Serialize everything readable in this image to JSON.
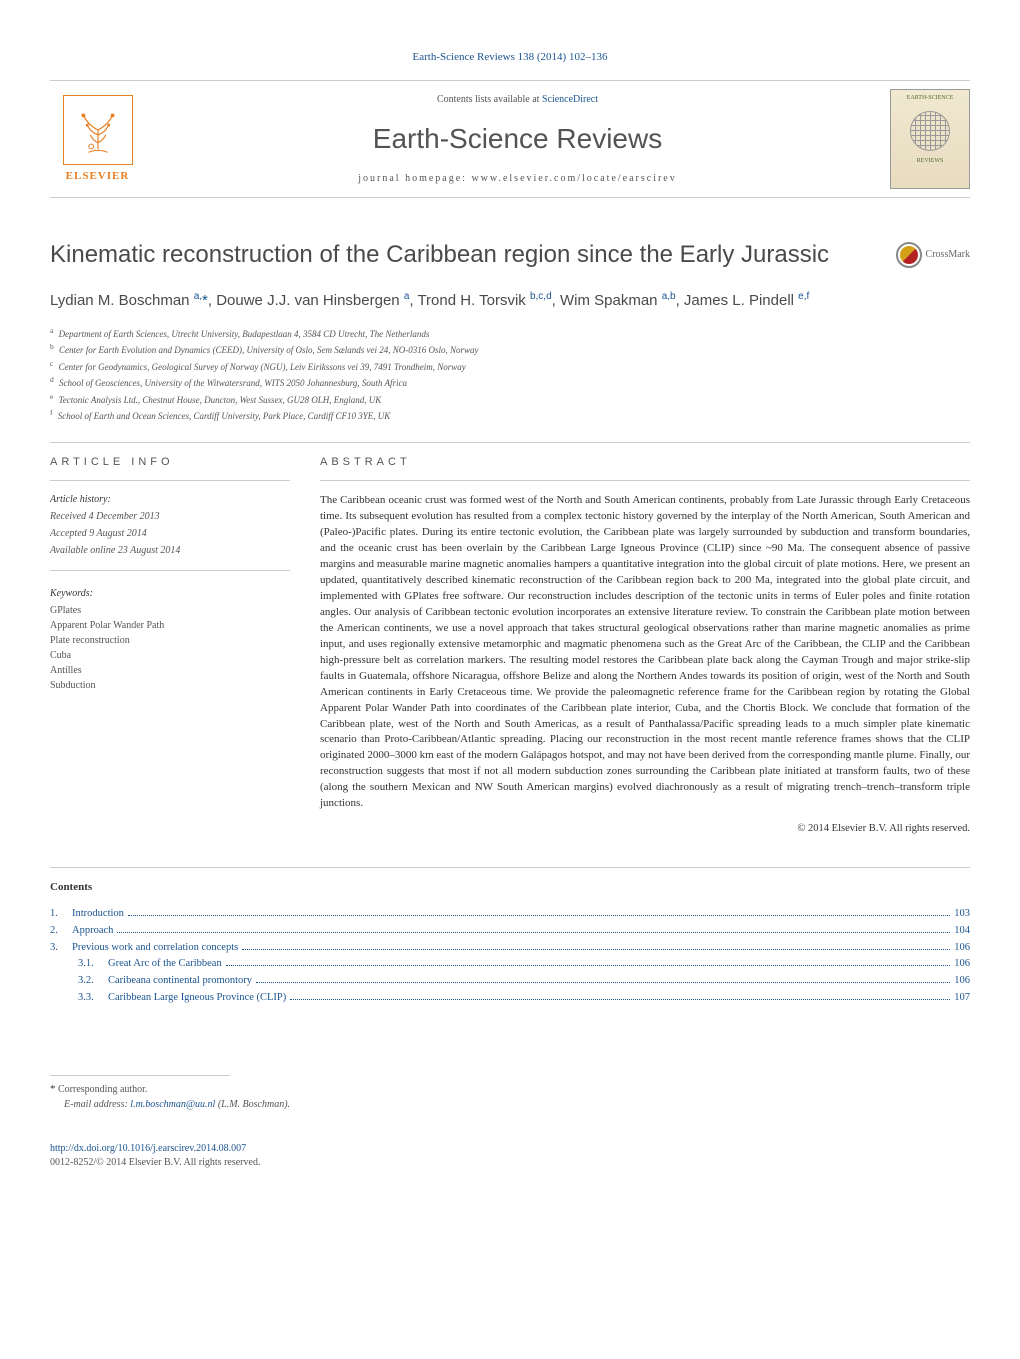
{
  "citation": "Earth-Science Reviews 138 (2014) 102–136",
  "header": {
    "contents_prefix": "Contents lists available at ",
    "contents_link": "ScienceDirect",
    "journal_name": "Earth-Science Reviews",
    "homepage_prefix": "journal homepage: ",
    "homepage_url": "www.elsevier.com/locate/earscirev",
    "publisher_name": "ELSEVIER",
    "cover_title": "EARTH-SCIENCE",
    "cover_reviews": "REVIEWS"
  },
  "article": {
    "title": "Kinematic reconstruction of the Caribbean region since the Early Jurassic",
    "crossmark": "CrossMark"
  },
  "authors_html": "Lydian M. Boschman <sup>a,</sup><span class='star'>*</span>, Douwe J.J. van Hinsbergen <sup>a</sup>, Trond H. Torsvik <sup>b,c,d</sup>, Wim Spakman <sup>a,b</sup>, James L. Pindell <sup>e,f</sup>",
  "affiliations": [
    {
      "sup": "a",
      "text": "Department of Earth Sciences, Utrecht University, Budapestlaan 4, 3584 CD Utrecht, The Netherlands"
    },
    {
      "sup": "b",
      "text": "Center for Earth Evolution and Dynamics (CEED), University of Oslo, Sem Sælands vei 24, NO-0316 Oslo, Norway"
    },
    {
      "sup": "c",
      "text": "Center for Geodynamics, Geological Survey of Norway (NGU), Leiv Eirikssons vei 39, 7491 Trondheim, Norway"
    },
    {
      "sup": "d",
      "text": "School of Geosciences, University of the Witwatersrand, WITS 2050 Johannesburg, South Africa"
    },
    {
      "sup": "e",
      "text": "Tectonic Analysis Ltd., Chestnut House, Duncton, West Sussex, GU28 OLH, England, UK"
    },
    {
      "sup": "f",
      "text": "School of Earth and Ocean Sciences, Cardiff University, Park Place, Cardiff CF10 3YE, UK"
    }
  ],
  "info": {
    "heading": "article info",
    "history_label": "Article history:",
    "received": "Received 4 December 2013",
    "accepted": "Accepted 9 August 2014",
    "available": "Available online 23 August 2014",
    "keywords_label": "Keywords:",
    "keywords": [
      "GPlates",
      "Apparent Polar Wander Path",
      "Plate reconstruction",
      "Cuba",
      "Antilles",
      "Subduction"
    ]
  },
  "abstract": {
    "heading": "abstract",
    "text": "The Caribbean oceanic crust was formed west of the North and South American continents, probably from Late Jurassic through Early Cretaceous time. Its subsequent evolution has resulted from a complex tectonic history governed by the interplay of the North American, South American and (Paleo-)Pacific plates. During its entire tectonic evolution, the Caribbean plate was largely surrounded by subduction and transform boundaries, and the oceanic crust has been overlain by the Caribbean Large Igneous Province (CLIP) since ~90 Ma. The consequent absence of passive margins and measurable marine magnetic anomalies hampers a quantitative integration into the global circuit of plate motions. Here, we present an updated, quantitatively described kinematic reconstruction of the Caribbean region back to 200 Ma, integrated into the global plate circuit, and implemented with GPlates free software. Our reconstruction includes description of the tectonic units in terms of Euler poles and finite rotation angles. Our analysis of Caribbean tectonic evolution incorporates an extensive literature review. To constrain the Caribbean plate motion between the American continents, we use a novel approach that takes structural geological observations rather than marine magnetic anomalies as prime input, and uses regionally extensive metamorphic and magmatic phenomena such as the Great Arc of the Caribbean, the CLIP and the Caribbean high-pressure belt as correlation markers. The resulting model restores the Caribbean plate back along the Cayman Trough and major strike-slip faults in Guatemala, offshore Nicaragua, offshore Belize and along the Northern Andes towards its position of origin, west of the North and South American continents in Early Cretaceous time. We provide the paleomagnetic reference frame for the Caribbean region by rotating the Global Apparent Polar Wander Path into coordinates of the Caribbean plate interior, Cuba, and the Chortis Block. We conclude that formation of the Caribbean plate, west of the North and South Americas, as a result of Panthalassa/Pacific spreading leads to a much simpler plate kinematic scenario than Proto-Caribbean/Atlantic spreading. Placing our reconstruction in the most recent mantle reference frames shows that the CLIP originated 2000–3000 km east of the modern Galápagos hotspot, and may not have been derived from the corresponding mantle plume. Finally, our reconstruction suggests that most if not all modern subduction zones surrounding the Caribbean plate initiated at transform faults, two of these (along the southern Mexican and NW South American margins) evolved diachronously as a result of migrating trench–trench–transform triple junctions.",
    "copyright": "© 2014 Elsevier B.V. All rights reserved."
  },
  "contents": {
    "heading": "Contents",
    "items": [
      {
        "num": "1.",
        "label": "Introduction",
        "page": "103",
        "indent": 0
      },
      {
        "num": "2.",
        "label": "Approach",
        "page": "104",
        "indent": 0
      },
      {
        "num": "3.",
        "label": "Previous work and correlation concepts",
        "page": "106",
        "indent": 0
      },
      {
        "num": "3.1.",
        "label": "Great Arc of the Caribbean",
        "page": "106",
        "indent": 1
      },
      {
        "num": "3.2.",
        "label": "Caribeana continental promontory",
        "page": "106",
        "indent": 1
      },
      {
        "num": "3.3.",
        "label": "Caribbean Large Igneous Province (CLIP)",
        "page": "107",
        "indent": 1
      }
    ]
  },
  "footer": {
    "corresponding_label": "Corresponding author.",
    "email_label": "E-mail address: ",
    "email": "l.m.boschman@uu.nl",
    "email_suffix": " (L.M. Boschman).",
    "doi": "http://dx.doi.org/10.1016/j.earscirev.2014.08.007",
    "issn_line": "0012-8252/© 2014 Elsevier B.V. All rights reserved."
  },
  "colors": {
    "link": "#1a5490",
    "publisher": "#e67e22",
    "text": "#333333",
    "muted": "#555555",
    "border": "#cccccc"
  },
  "typography": {
    "body_pt": 12,
    "title_pt": 24,
    "journal_pt": 28,
    "authors_pt": 15,
    "affil_pt": 9,
    "abstract_pt": 11,
    "section_head_pt": 11,
    "footer_pt": 10
  }
}
